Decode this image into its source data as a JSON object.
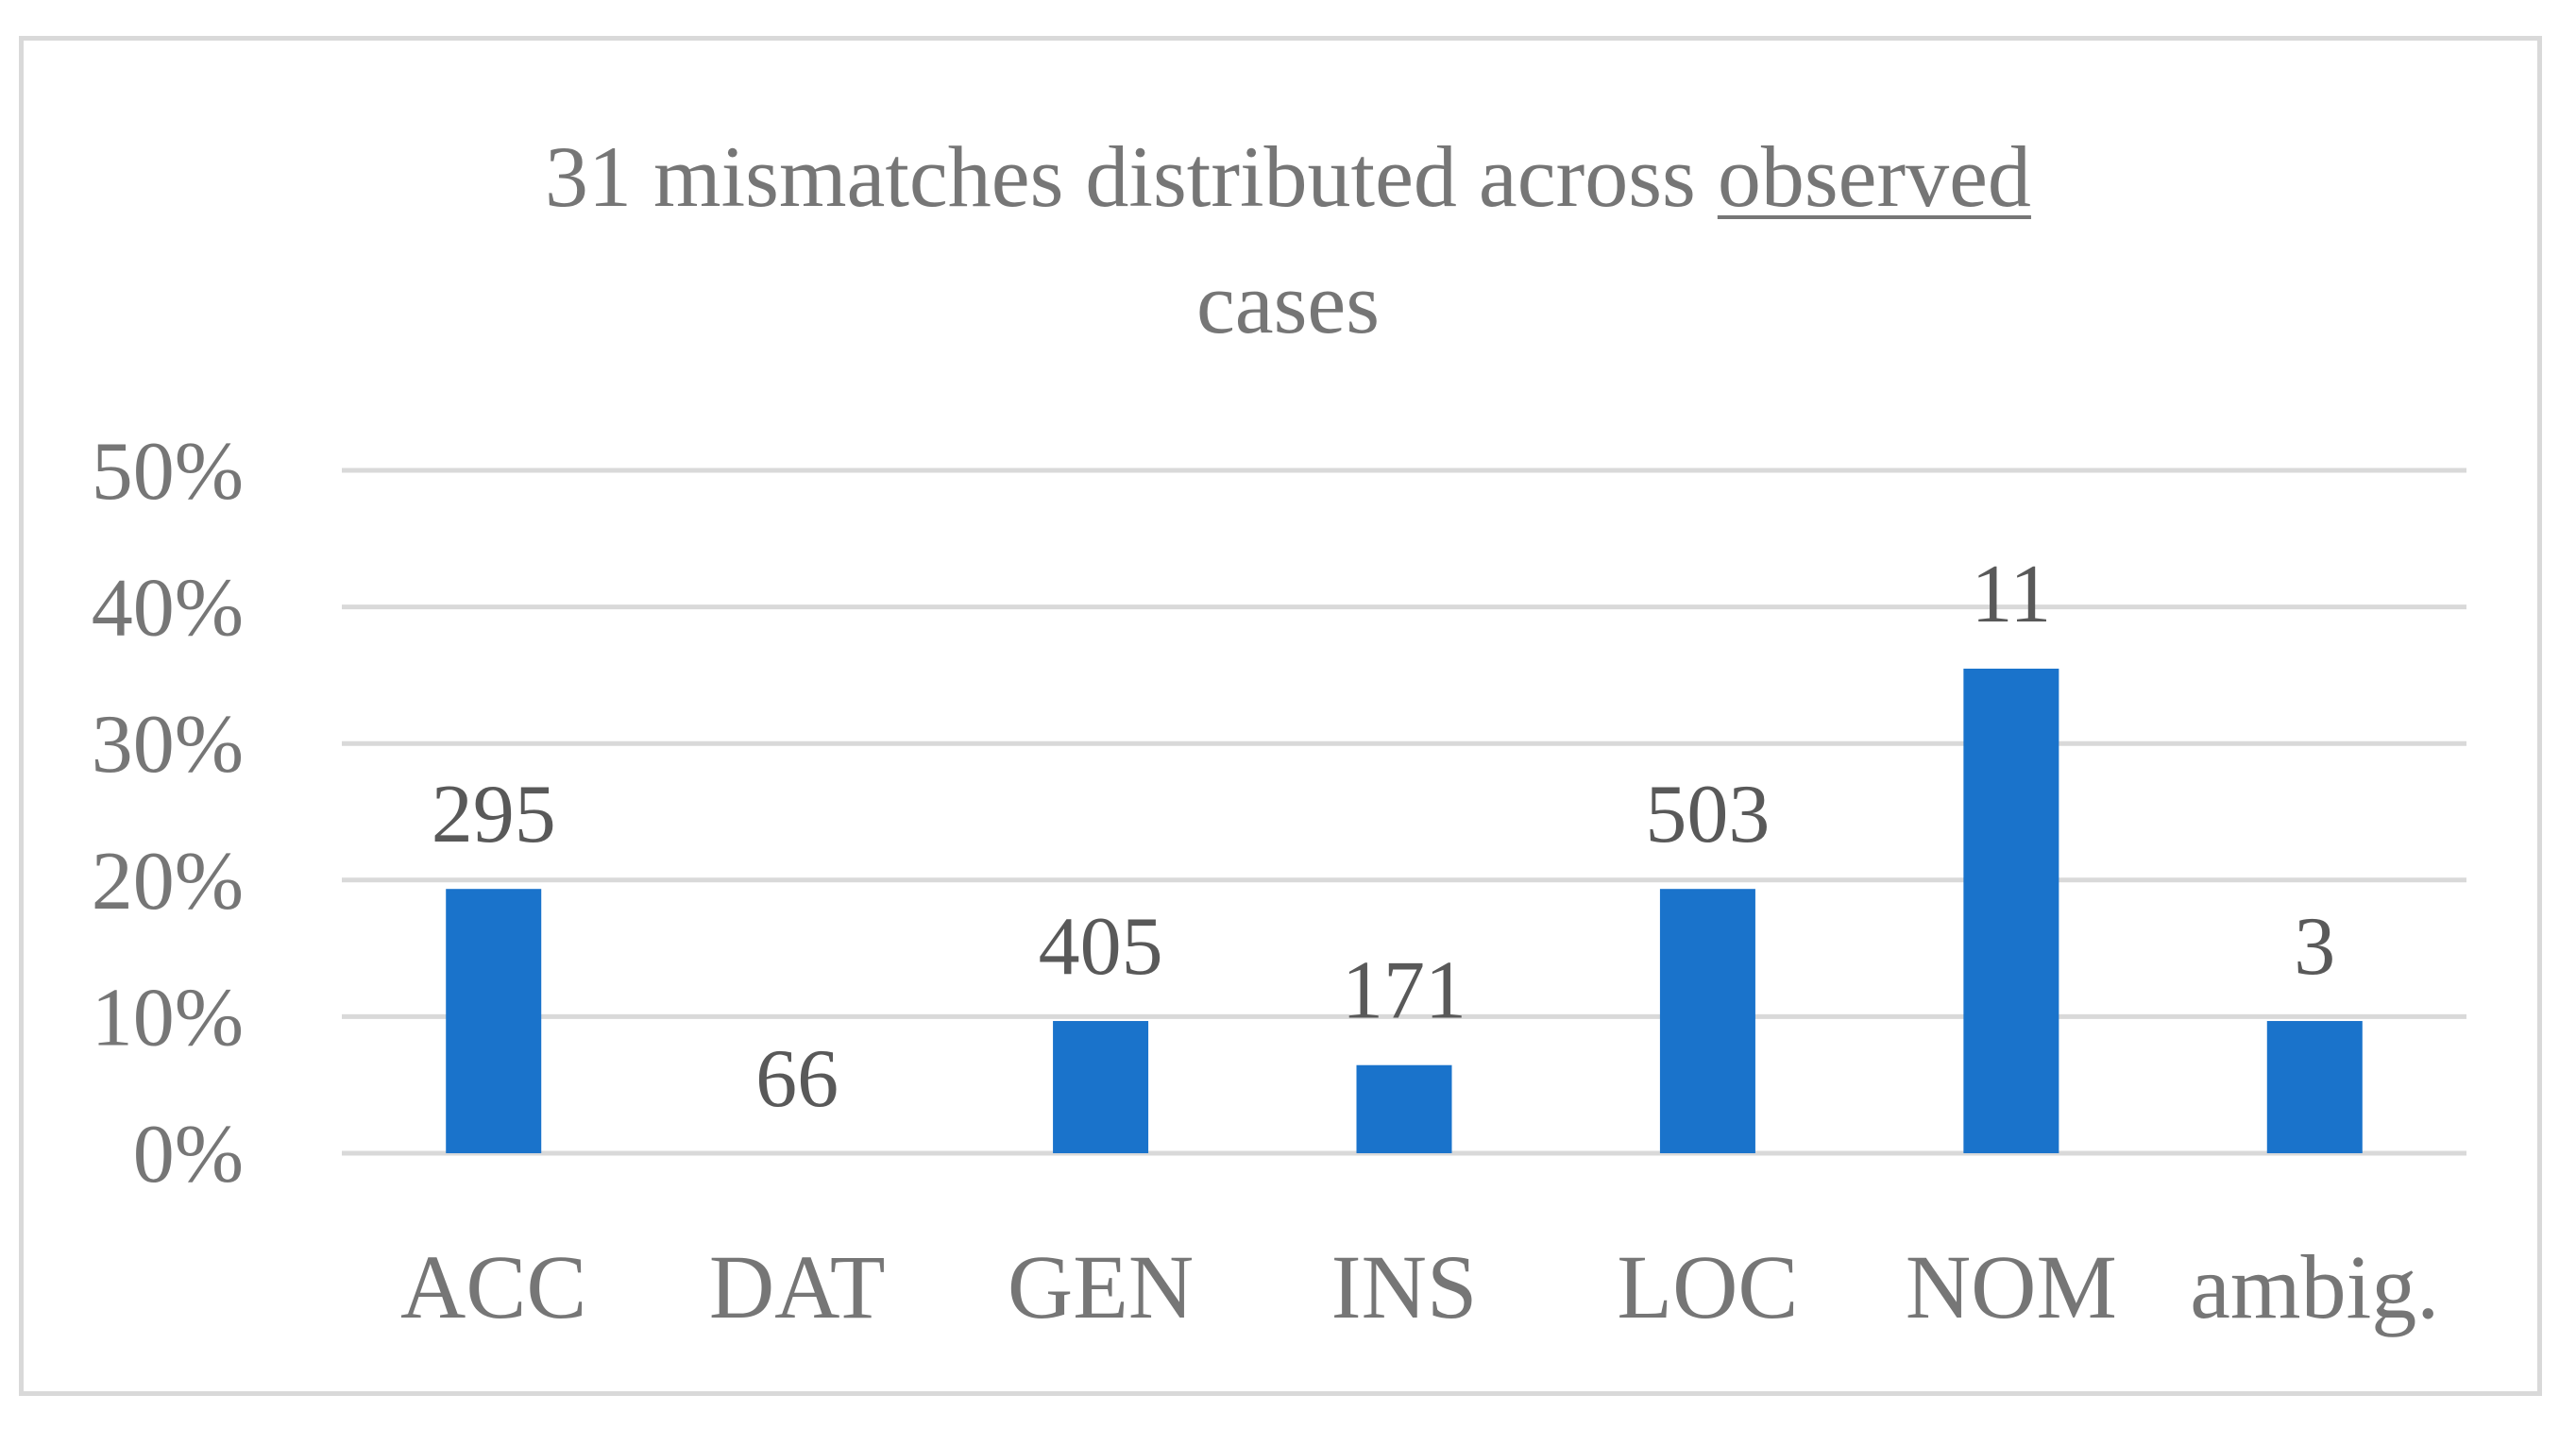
{
  "chart_data": {
    "type": "bar",
    "title": {
      "prefix": "31 mismatches distributed across ",
      "underlined": "observed",
      "suffix": "cases"
    },
    "categories": [
      "ACC",
      "DAT",
      "GEN",
      "INS",
      "LOC",
      "NOM",
      "ambig."
    ],
    "values": [
      19.35,
      0,
      9.68,
      6.45,
      19.35,
      35.48,
      9.68
    ],
    "data_labels": [
      "295",
      "66",
      "405",
      "171",
      "503",
      "11",
      "3"
    ],
    "yticks": [
      "0%",
      "10%",
      "20%",
      "30%",
      "40%",
      "50%"
    ],
    "ylim": [
      0,
      50
    ],
    "ytick_values": [
      0,
      10,
      20,
      30,
      40,
      50
    ],
    "xlabel": "",
    "ylabel": "",
    "grid": true,
    "bar_color": "#1a73cb",
    "grid_color": "#d9d9d9",
    "text_color": "#767676",
    "label_color": "#595959"
  }
}
